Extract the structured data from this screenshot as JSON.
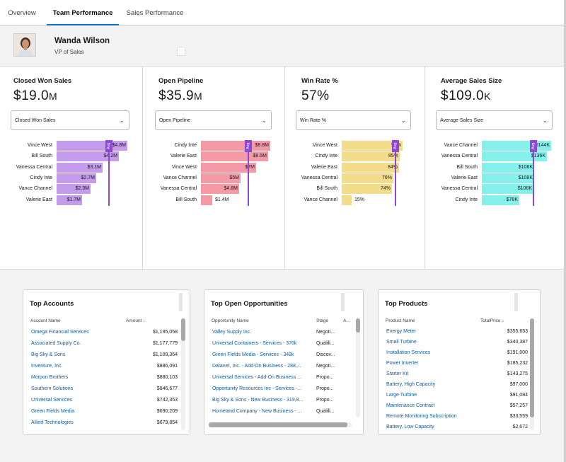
{
  "tabs": [
    {
      "label": "Overview"
    },
    {
      "label": "Team Performance"
    },
    {
      "label": "Sales Performance"
    }
  ],
  "profile": {
    "name": "Wanda Wilson",
    "title": "VP of Sales"
  },
  "metrics": [
    {
      "title": "Closed Won Sales",
      "value": "$19.0",
      "unit": "M",
      "select": "Closed Won Sales",
      "color": "#c59bec",
      "avg_label": "Avg",
      "avg": 0.73,
      "rows": [
        {
          "name": "Vince West",
          "value": "$4.8M",
          "frac": 1.0
        },
        {
          "name": "Bill South",
          "value": "$4.2M",
          "frac": 0.88
        },
        {
          "name": "Vanessa Central",
          "value": "$3.1M",
          "frac": 0.65
        },
        {
          "name": "Cindy Inte",
          "value": "$2.7M",
          "frac": 0.56
        },
        {
          "name": "Vance Channel",
          "value": "$2.3M",
          "frac": 0.48
        },
        {
          "name": "Valerie East",
          "value": "$1.7M",
          "frac": 0.36
        }
      ]
    },
    {
      "title": "Open Pipeline",
      "value": "$35.9",
      "unit": "M",
      "select": "Open Pipeline",
      "color": "#f49aa6",
      "avg_label": "Avg",
      "avg": 0.67,
      "rows": [
        {
          "name": "Cindy Inte",
          "value": "$8.8M",
          "frac": 1.0
        },
        {
          "name": "Valerie East",
          "value": "$8.5M",
          "frac": 0.97
        },
        {
          "name": "Vince West",
          "value": "$7M",
          "frac": 0.8
        },
        {
          "name": "Vance Channel",
          "value": "$5M",
          "frac": 0.57
        },
        {
          "name": "Vanessa Central",
          "value": "$4.8M",
          "frac": 0.55
        },
        {
          "name": "Bill South",
          "value": "$1.4M",
          "frac": 0.16
        }
      ]
    },
    {
      "title": "Win Rate %",
      "value": "57%",
      "unit": "",
      "select": "Win Rate %",
      "color": "#f3dc8b",
      "avg_label": "Avg",
      "avg": 0.78,
      "rows": [
        {
          "name": "Vince West",
          "value": "90%",
          "frac": 0.9
        },
        {
          "name": "Cindy Inte",
          "value": "85%",
          "frac": 0.85
        },
        {
          "name": "Valerie East",
          "value": "84%",
          "frac": 0.84
        },
        {
          "name": "Vanessa Central",
          "value": "76%",
          "frac": 0.76
        },
        {
          "name": "Bill South",
          "value": "74%",
          "frac": 0.74
        },
        {
          "name": "Vance Channel",
          "value": "15%",
          "frac": 0.15
        }
      ]
    },
    {
      "title": "Average Sales Size",
      "value": "$109.0",
      "unit": "K",
      "select": "Average Sales Size",
      "color": "#86f0ec",
      "avg_label": "Avg",
      "avg": 0.73,
      "rows": [
        {
          "name": "Vance Channel",
          "value": "$144K",
          "frac": 1.0
        },
        {
          "name": "Vanessa Central",
          "value": "$136K",
          "frac": 0.94
        },
        {
          "name": "Bill South",
          "value": "$108K",
          "frac": 0.75
        },
        {
          "name": "Valerie East",
          "value": "$108K",
          "frac": 0.75
        },
        {
          "name": "Vanessa Central",
          "value": "$106K",
          "frac": 0.74
        },
        {
          "name": "Cindy Inte",
          "value": "$78K",
          "frac": 0.54
        }
      ]
    }
  ],
  "top_accounts": {
    "title": "Top Accounts",
    "columns": [
      "Account Name",
      "Amount"
    ],
    "sort_icon": "arrow-down-icon",
    "rows": [
      [
        "Omega Financial Services",
        "$1,195,058"
      ],
      [
        "Associated Supply Co.",
        "$1,177,779"
      ],
      [
        "Big Sky & Sons",
        "$1,109,364"
      ],
      [
        "Inventure, Inc.",
        "$886,091"
      ],
      [
        "Morpon Brothers",
        "$880,103"
      ],
      [
        "Southern Solutions",
        "$846,677"
      ],
      [
        "Universal Services",
        "$742,353"
      ],
      [
        "Green Fields Media",
        "$690,209"
      ],
      [
        "Allied Technologies",
        "$679,854"
      ]
    ]
  },
  "top_opportunities": {
    "title": "Top Open Opportunities",
    "columns": [
      "Opportunity Name",
      "Stage",
      "A..."
    ],
    "rows": [
      [
        "Valley Supply Inc.",
        "Negoti..."
      ],
      [
        "Universal Containers - Services - 376k",
        "Qualifi..."
      ],
      [
        "Green Fields Media - Services - 348k",
        "Discov..."
      ],
      [
        "Datanet, Inc. - Add-On Business - 288,...",
        "Negoti..."
      ],
      [
        "Universal Services - Add-On Business ...",
        "Propo..."
      ],
      [
        "Opportunity Resources Inc - Services -...",
        "Propo..."
      ],
      [
        "Big Sky & Sons - New Business - 319,8...",
        "Propo..."
      ],
      [
        "Homeland Company - New Business - ...",
        "Qualifi..."
      ]
    ]
  },
  "top_products": {
    "title": "Top Products",
    "columns": [
      "Product Name",
      "TotalPrice"
    ],
    "sort_icon": "arrow-down-icon",
    "rows": [
      [
        "Energy Meter",
        "$355,653"
      ],
      [
        "Small Turbine",
        "$340,387"
      ],
      [
        "Installation Services",
        "$191,000"
      ],
      [
        "Power Inverter",
        "$185,232"
      ],
      [
        "Starter Kit",
        "$143,275"
      ],
      [
        "Battery, High Capacity",
        "$97,000"
      ],
      [
        "Large Turbine",
        "$91,084"
      ],
      [
        "Maintenance Contract",
        "$57,257"
      ],
      [
        "Remote Monitoring Subscription",
        "$33,559"
      ],
      [
        "Battery, Low Capacity",
        "$2,672"
      ]
    ]
  }
}
